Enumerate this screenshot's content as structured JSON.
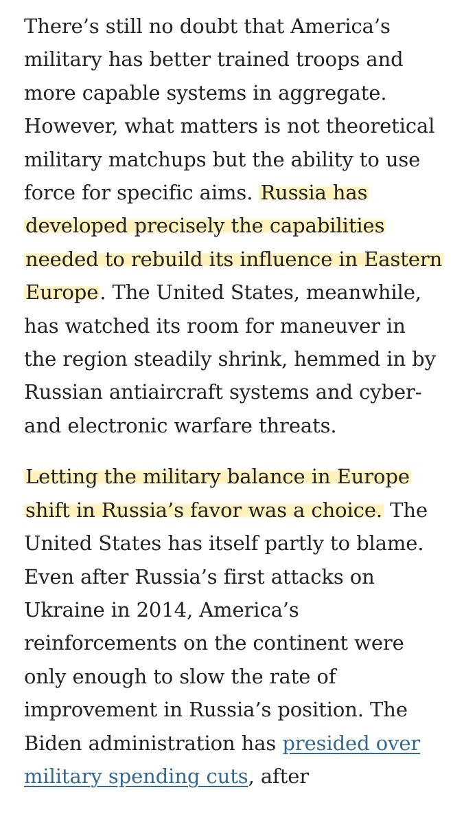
{
  "article": {
    "paragraph_1": {
      "intro": "There’s still no doubt that America’s military has better trained troops and more capable systems in aggregate. However, what matters is not theoretical military matchups but the ability to use force for specific aims.",
      "highlight": "Russia has developed precisely the capabilities needed to rebuild its influence in Eastern Europe",
      "rest": ". The United States, meanwhile, has watched its room for maneuver in the region steadily shrink, hemmed in by Russian antiaircraft systems and cyber- and electronic warfare threats."
    },
    "paragraph_2": {
      "highlight": "Letting the military balance in Europe shift in Russia’s favor was a choice.",
      "body": "The United States has itself partly to blame. Even after Russia’s first attacks on Ukraine in 2014, America’s reinforcements on the continent were only enough to slow the rate of improvement in Russia’s position. The Biden administration has",
      "link_text": "presided over military spending cuts",
      "tail": ", after"
    }
  },
  "colors": {
    "text": "#222222",
    "highlight": "#ffe88c",
    "link": "#326891"
  }
}
